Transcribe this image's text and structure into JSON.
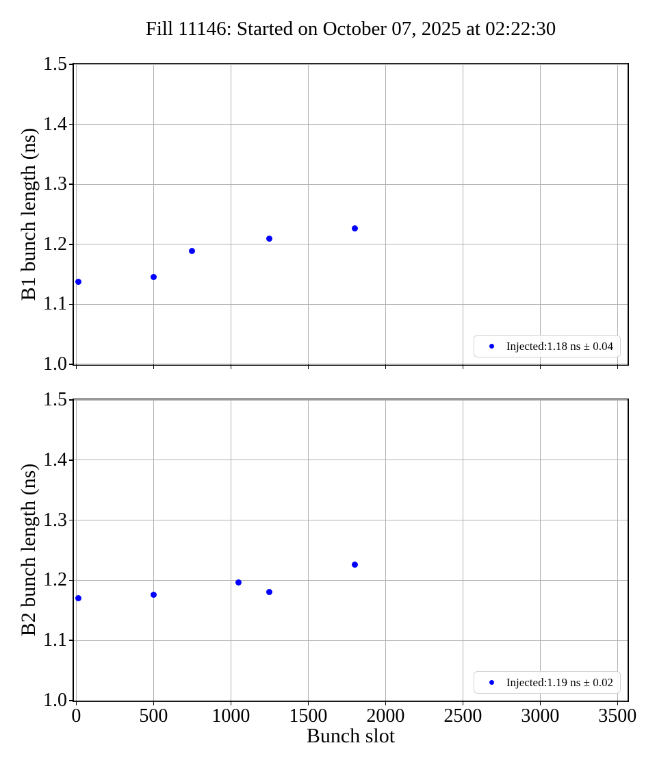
{
  "figure": {
    "title": "Fill 11146: Started on October 07, 2025 at 02:22:30",
    "xlabel": "Bunch slot"
  },
  "style_colors": {
    "marker": "#0000ff",
    "grid": "#b0b0b0",
    "axis": "#000000",
    "legend_edge": "#d2d2d2",
    "background": "#ffffff"
  },
  "chart_data": [
    {
      "type": "scatter",
      "ylabel": "B1 bunch length (ns)",
      "xlim": [
        -15,
        3565
      ],
      "ylim": [
        1.0,
        1.5
      ],
      "xticks": [
        0,
        500,
        1000,
        1500,
        2000,
        2500,
        3000,
        3500
      ],
      "yticks": [
        1.0,
        1.1,
        1.2,
        1.3,
        1.4,
        1.5
      ],
      "show_xtick_labels": false,
      "grid": true,
      "legend": {
        "position": "lower right"
      },
      "series": [
        {
          "name": "Injected:1.18 ns ± 0.04",
          "marker": "dot",
          "color": "#0000ff",
          "points": [
            [
              15,
              1.137
            ],
            [
              500,
              1.145
            ],
            [
              750,
              1.189
            ],
            [
              1250,
              1.209
            ],
            [
              1800,
              1.227
            ]
          ]
        }
      ]
    },
    {
      "type": "scatter",
      "ylabel": "B2 bunch length (ns)",
      "xlim": [
        -15,
        3565
      ],
      "ylim": [
        1.0,
        1.5
      ],
      "xticks": [
        0,
        500,
        1000,
        1500,
        2000,
        2500,
        3000,
        3500
      ],
      "yticks": [
        1.0,
        1.1,
        1.2,
        1.3,
        1.4,
        1.5
      ],
      "show_xtick_labels": true,
      "grid": true,
      "legend": {
        "position": "lower right"
      },
      "series": [
        {
          "name": "Injected:1.19 ns ± 0.02",
          "marker": "dot",
          "color": "#0000ff",
          "points": [
            [
              15,
              1.17
            ],
            [
              500,
              1.176
            ],
            [
              1050,
              1.196
            ],
            [
              1250,
              1.181
            ],
            [
              1800,
              1.226
            ]
          ]
        }
      ]
    }
  ]
}
